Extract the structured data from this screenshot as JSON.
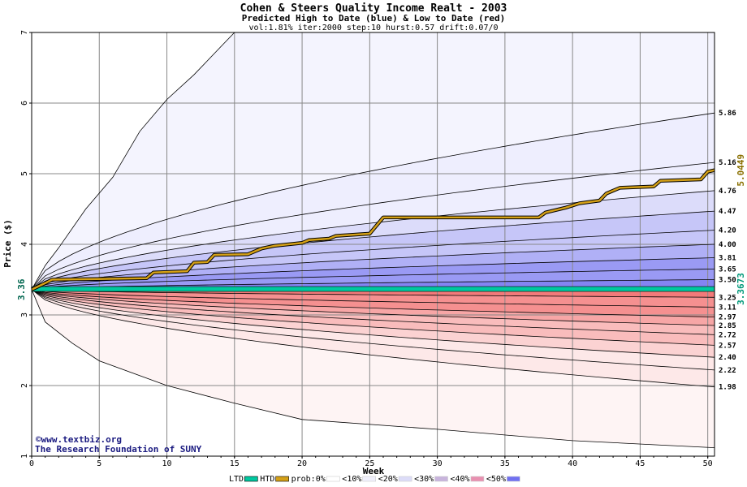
{
  "chart_data": {
    "type": "area",
    "title": "Cohen & Steers Quality Income Realt - 2003",
    "subtitle": "Predicted High to Date (blue) &  Low to Date (red)",
    "params": "vol:1.81% iter:2000 step:10 hurst:0.57 drift:0.07/0",
    "xlabel": "Week",
    "ylabel": "Price ($)",
    "xlim": [
      0,
      50.5
    ],
    "ylim": [
      1,
      7
    ],
    "x_ticks": [
      0,
      5,
      10,
      15,
      20,
      25,
      30,
      35,
      40,
      45,
      50
    ],
    "y_ticks": [
      1,
      2,
      3,
      4,
      5,
      6,
      7
    ],
    "grid": true,
    "start_price": 3.36,
    "start_label": "3.36",
    "high_levels": [
      "5.86",
      "5.16",
      "4.76",
      "4.47",
      "4.20",
      "4.00",
      "3.81",
      "3.65",
      "3.50"
    ],
    "low_levels": [
      "3.25",
      "3.11",
      "2.97",
      "2.85",
      "2.72",
      "2.57",
      "2.40",
      "2.22",
      "1.98"
    ],
    "upper_envelope": [
      [
        0,
        3.36
      ],
      [
        1,
        3.7
      ],
      [
        2,
        3.95
      ],
      [
        4,
        4.5
      ],
      [
        6,
        4.95
      ],
      [
        8,
        5.6
      ],
      [
        10,
        6.05
      ],
      [
        12,
        6.4
      ],
      [
        14,
        6.8
      ],
      [
        15,
        7.0
      ]
    ],
    "lower_envelope": [
      [
        0,
        3.36
      ],
      [
        1,
        2.9
      ],
      [
        3,
        2.6
      ],
      [
        5,
        2.35
      ],
      [
        10,
        2.0
      ],
      [
        15,
        1.75
      ],
      [
        20,
        1.52
      ],
      [
        30,
        1.38
      ],
      [
        40,
        1.22
      ],
      [
        50.5,
        1.12
      ]
    ],
    "htd_series": {
      "name": "HTD",
      "end_label": "5.0449",
      "color": "#d4a017",
      "points": [
        [
          0,
          3.36
        ],
        [
          1,
          3.45
        ],
        [
          1.5,
          3.5
        ],
        [
          8.5,
          3.52
        ],
        [
          9,
          3.6
        ],
        [
          11.5,
          3.62
        ],
        [
          12,
          3.74
        ],
        [
          13,
          3.75
        ],
        [
          13.5,
          3.85
        ],
        [
          16,
          3.86
        ],
        [
          17,
          3.94
        ],
        [
          18,
          3.98
        ],
        [
          20,
          4.02
        ],
        [
          20.5,
          4.06
        ],
        [
          22,
          4.08
        ],
        [
          22.5,
          4.12
        ],
        [
          25,
          4.15
        ],
        [
          26,
          4.38
        ],
        [
          37.5,
          4.38
        ],
        [
          38,
          4.45
        ],
        [
          39.5,
          4.52
        ],
        [
          40.5,
          4.58
        ],
        [
          42,
          4.62
        ],
        [
          42.5,
          4.72
        ],
        [
          43.5,
          4.8
        ],
        [
          46,
          4.82
        ],
        [
          46.5,
          4.9
        ],
        [
          49.5,
          4.92
        ],
        [
          50,
          5.03
        ],
        [
          50.5,
          5.05
        ]
      ]
    },
    "ltd_series": {
      "name": "LTD",
      "end_label": "3.3673",
      "color": "#00c8a0",
      "value": 3.3673
    },
    "legend": {
      "placement": "bottom",
      "items": [
        {
          "label": "LTD",
          "color": "#00c8a0"
        },
        {
          "label": "HTD",
          "color": "#d4a017"
        },
        {
          "label": "prob:0%",
          "color": "#ffffff"
        },
        {
          "label": "<10%",
          "color": "#f0f0fc"
        },
        {
          "label": "<20%",
          "color": "#dcdcf8"
        },
        {
          "label": "<30%",
          "color": "#c8b4dc"
        },
        {
          "label": "<40%",
          "color": "#e890b0"
        },
        {
          "label": "<50%",
          "color": "#7070f0"
        }
      ]
    },
    "colors": {
      "high_bands": [
        "#eeeefe",
        "#dcdcfa",
        "#c6c6f8",
        "#b0b0f6",
        "#9a9af4",
        "#8484f2"
      ],
      "low_bands": [
        "#fde8e8",
        "#fbd2d2",
        "#f9bcbc",
        "#f7a6a6",
        "#f59090",
        "#f37a7a"
      ]
    }
  },
  "credits": {
    "line1": "©www.textbiz.org",
    "line2": "The Research Foundation of SUNY"
  }
}
